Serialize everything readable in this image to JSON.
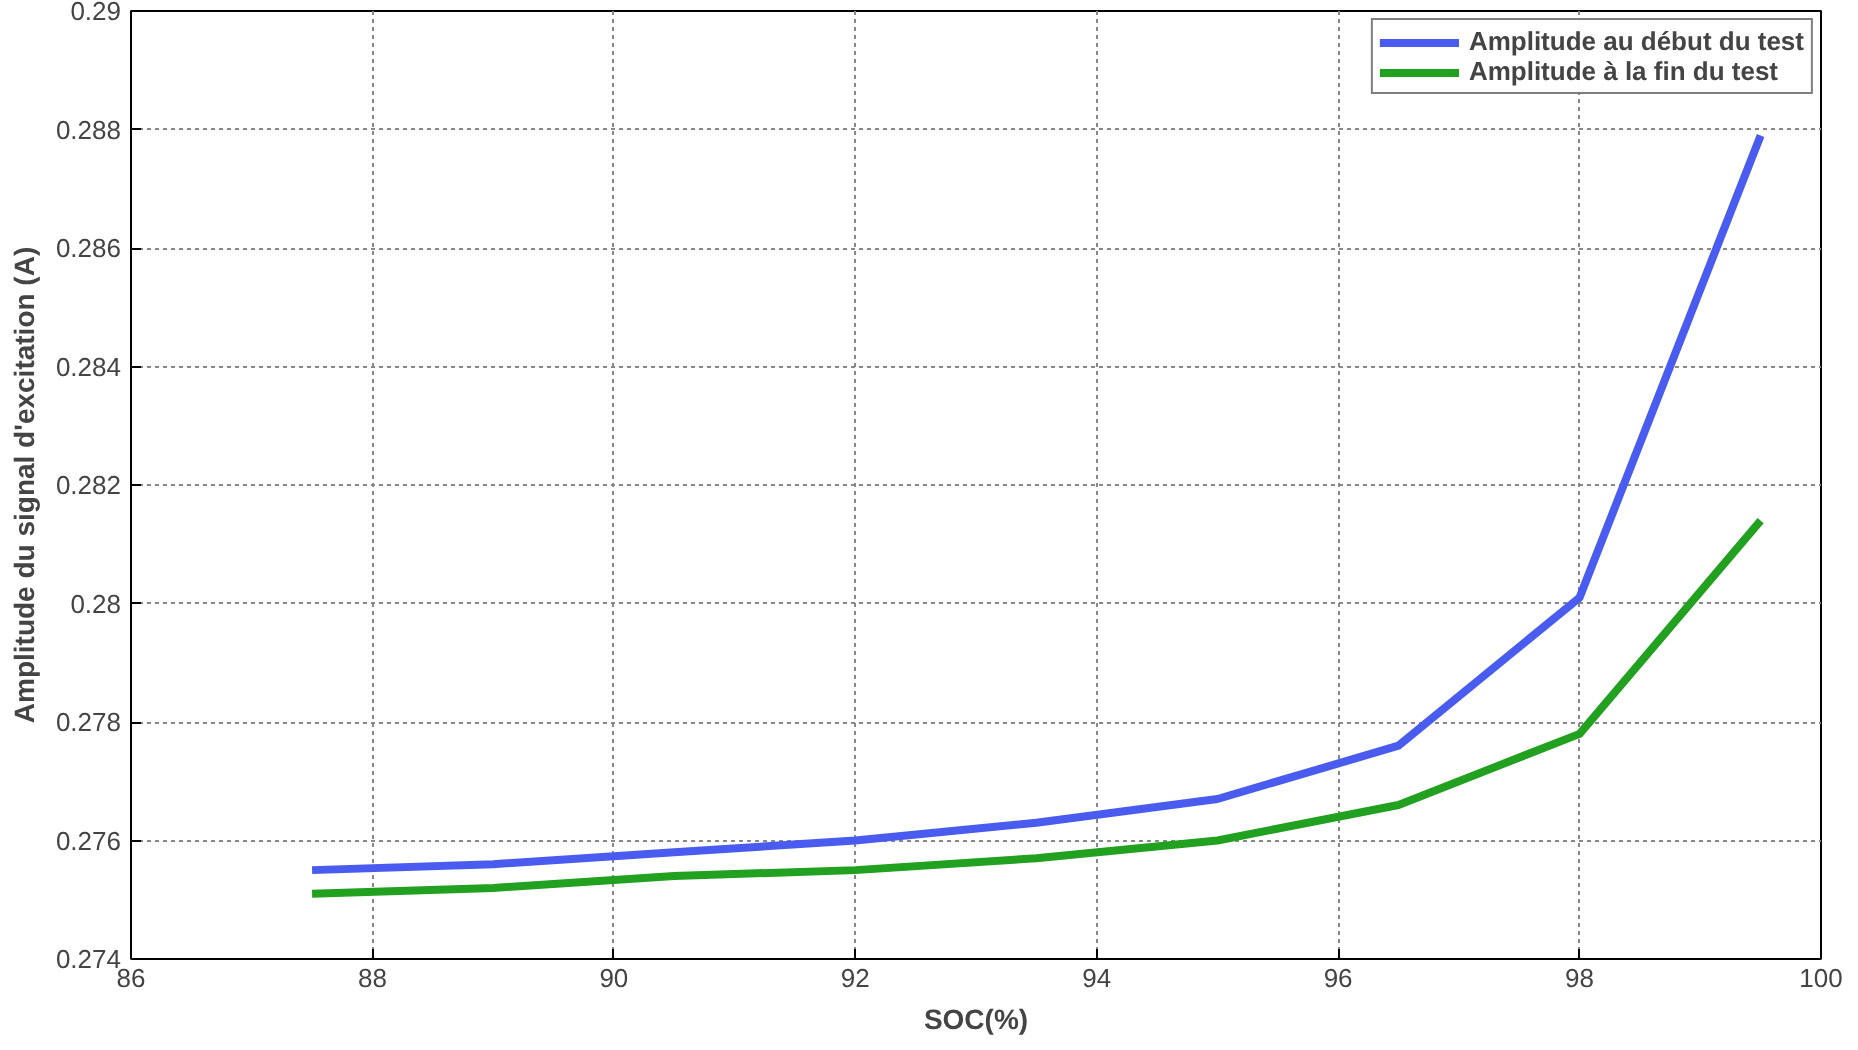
{
  "chart_data": {
    "type": "line",
    "xlabel": "SOC(%)",
    "ylabel": "Amplitude du signal d'excitation (A)",
    "x": [
      87.5,
      89,
      90.5,
      92,
      93.5,
      95,
      96.5,
      98,
      99.5
    ],
    "series": [
      {
        "name": "Amplitude au début du test",
        "color": "#4a5cf0",
        "values": [
          0.2755,
          0.2756,
          0.2758,
          0.276,
          0.2763,
          0.2767,
          0.2776,
          0.2801,
          0.2879
        ]
      },
      {
        "name": "Amplitude à la fin du test",
        "color": "#22a020",
        "values": [
          0.2751,
          0.2752,
          0.2754,
          0.2755,
          0.2757,
          0.276,
          0.2766,
          0.2778,
          0.2814
        ]
      }
    ],
    "xlim": [
      86,
      100
    ],
    "xticks": [
      86,
      88,
      90,
      92,
      94,
      96,
      98,
      100
    ],
    "ylim": [
      0.274,
      0.29
    ],
    "yticks": [
      0.274,
      0.276,
      0.278,
      0.28,
      0.282,
      0.284,
      0.286,
      0.288,
      0.29
    ],
    "grid": true,
    "legend": "top right",
    "line_style": "solid",
    "marker": "none"
  }
}
